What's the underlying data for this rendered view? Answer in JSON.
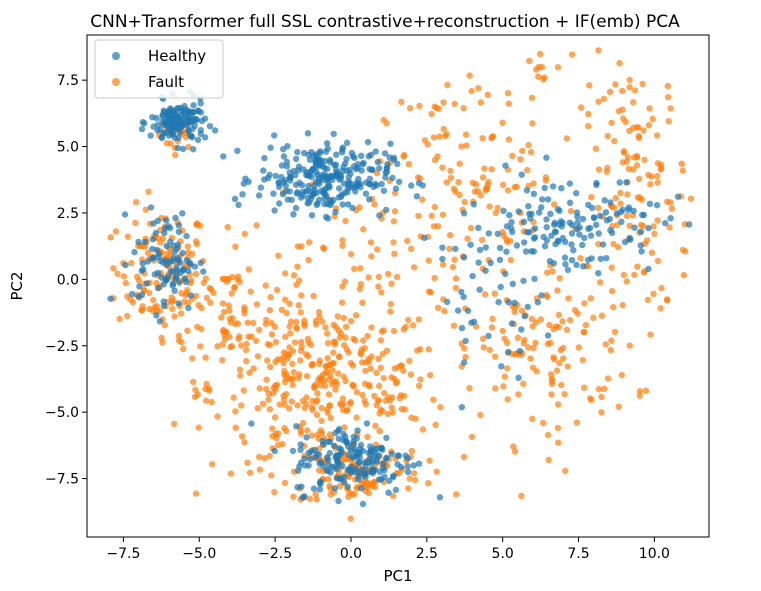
{
  "chart_data": {
    "type": "scatter",
    "title": "CNN+Transformer full SSL contrastive+reconstruction + IF(emb) PCA",
    "xlabel": "PC1",
    "ylabel": "PC2",
    "xlim": [
      -8.7,
      11.8
    ],
    "ylim": [
      -9.7,
      9.2
    ],
    "xticks": [
      -7.5,
      -5.0,
      -2.5,
      0.0,
      2.5,
      5.0,
      7.5,
      10.0
    ],
    "xtick_labels": [
      "−7.5",
      "−5.0",
      "−2.5",
      "0.0",
      "2.5",
      "5.0",
      "7.5",
      "10.0"
    ],
    "yticks": [
      -7.5,
      -5.0,
      -2.5,
      0.0,
      2.5,
      5.0,
      7.5
    ],
    "ytick_labels": [
      "−7.5",
      "−5.0",
      "−2.5",
      "0.0",
      "2.5",
      "5.0",
      "7.5"
    ],
    "grid": false,
    "legend_position": "top-left",
    "marker_opacity": 0.7,
    "series": [
      {
        "name": "Healthy",
        "color": "#1f77b4",
        "clusters": [
          {
            "cx": -5.7,
            "cy": 5.9,
            "sx": 0.45,
            "sy": 0.4,
            "n": 140
          },
          {
            "cx": -0.9,
            "cy": 3.8,
            "sx": 1.1,
            "sy": 0.65,
            "n": 260
          },
          {
            "cx": -6.1,
            "cy": 0.7,
            "sx": 0.55,
            "sy": 0.95,
            "n": 90
          },
          {
            "cx": 0.1,
            "cy": -6.8,
            "sx": 1.0,
            "sy": 0.65,
            "n": 170
          },
          {
            "cx": 7.2,
            "cy": 2.1,
            "sx": 1.5,
            "sy": 1.0,
            "n": 140
          },
          {
            "cx": 4.6,
            "cy": -0.6,
            "sx": 0.9,
            "sy": 1.4,
            "n": 45
          }
        ]
      },
      {
        "name": "Fault",
        "color": "#ff7f0e",
        "clusters": [
          {
            "cx": -5.7,
            "cy": 5.6,
            "sx": 0.3,
            "sy": 0.35,
            "n": 30
          },
          {
            "cx": -6.2,
            "cy": 0.3,
            "sx": 0.75,
            "sy": 1.2,
            "n": 130
          },
          {
            "cx": -4.0,
            "cy": -1.2,
            "sx": 1.1,
            "sy": 1.4,
            "n": 90
          },
          {
            "cx": -0.8,
            "cy": -4.0,
            "sx": 1.9,
            "sy": 1.6,
            "n": 360
          },
          {
            "cx": 0.2,
            "cy": -7.3,
            "sx": 1.1,
            "sy": 0.6,
            "n": 110
          },
          {
            "cx": 0.5,
            "cy": 1.3,
            "sx": 2.2,
            "sy": 1.3,
            "n": 70
          },
          {
            "cx": 4.0,
            "cy": 3.8,
            "sx": 1.4,
            "sy": 1.5,
            "n": 90
          },
          {
            "cx": 6.3,
            "cy": -2.5,
            "sx": 1.5,
            "sy": 1.8,
            "n": 130
          },
          {
            "cx": 9.4,
            "cy": 3.2,
            "sx": 0.9,
            "sy": 2.6,
            "n": 140
          },
          {
            "cx": 6.5,
            "cy": 7.8,
            "sx": 0.5,
            "sy": 0.5,
            "n": 10
          },
          {
            "cx": 3.0,
            "cy": 6.8,
            "sx": 0.8,
            "sy": 0.6,
            "n": 15
          }
        ]
      }
    ]
  }
}
